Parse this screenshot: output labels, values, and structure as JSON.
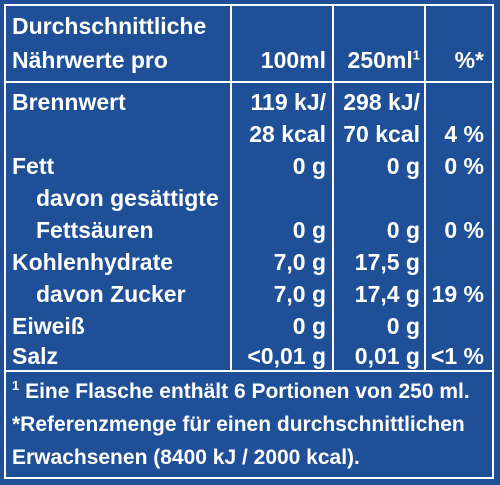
{
  "header": {
    "line1": "Durchschnittliche",
    "line2": "Nährwerte pro",
    "col100": "100ml",
    "col250": "250ml",
    "col250_sup": "1",
    "colPct": "%*"
  },
  "rows": [
    {
      "label": "Brennwert",
      "v100": "119 kJ/",
      "v250": "298 kJ/",
      "pct": ""
    },
    {
      "label": "",
      "v100": "28 kcal",
      "v250": "70 kcal",
      "pct": "4 %"
    },
    {
      "label": "Fett",
      "v100": "0 g",
      "v250": "0 g",
      "pct": "0 %"
    },
    {
      "label": "davon gesättigte",
      "v100": "",
      "v250": "",
      "pct": ""
    },
    {
      "label": "Fettsäuren",
      "v100": "0 g",
      "v250": "0 g",
      "pct": "0 %"
    },
    {
      "label": "Kohlenhydrate",
      "v100": "7,0 g",
      "v250": "17,5 g",
      "pct": ""
    },
    {
      "label": "davon Zucker",
      "v100": "7,0 g",
      "v250": "17,4 g",
      "pct": "19 %"
    },
    {
      "label": "Eiweiß",
      "v100": "0 g",
      "v250": "0 g",
      "pct": ""
    },
    {
      "label": "Salz",
      "v100": "<0,01 g",
      "v250": "0,01 g",
      "pct": "<1 %"
    }
  ],
  "footnotes": {
    "fn1_mark": "1",
    "fn1": " Eine Flasche enthält 6 Portionen von 250 ml.",
    "fn2_line1": "*Referenzmenge für einen durchschnittlichen",
    "fn2_line2": "Erwachsenen (8400 kJ / 2000 kcal)."
  }
}
